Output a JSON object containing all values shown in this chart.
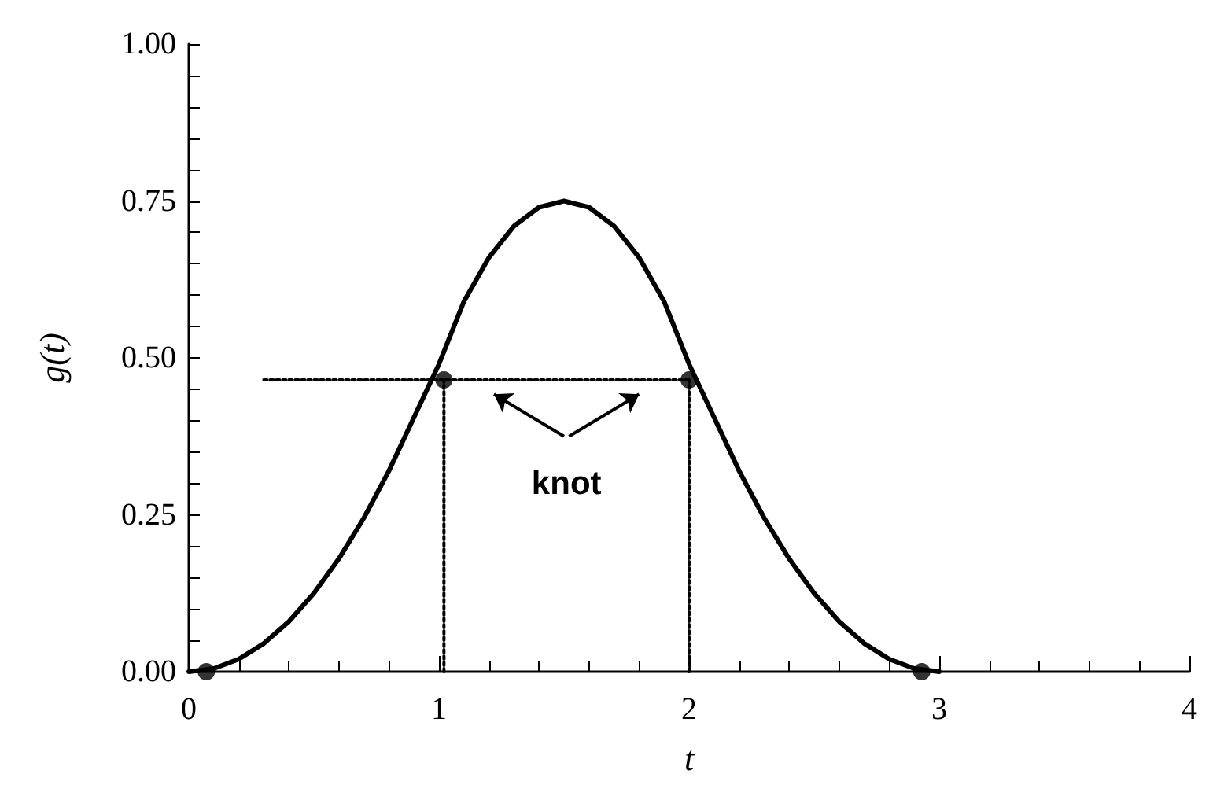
{
  "chart_data": {
    "type": "line",
    "xlabel": "t",
    "ylabel": "g(t)",
    "xlim": [
      0,
      4
    ],
    "xticks": [
      0,
      1,
      2,
      3,
      4
    ],
    "ylim": [
      0,
      1
    ],
    "yticks": [
      {
        "value": 0,
        "label": "0.00"
      },
      {
        "value": 0.25,
        "label": "0.25"
      },
      {
        "value": 0.5,
        "label": "0.50"
      },
      {
        "value": 0.75,
        "label": "0.75"
      },
      {
        "value": 1,
        "label": "1.00"
      }
    ],
    "grid": false,
    "marker": "none",
    "line_style": "solid",
    "series": [
      {
        "color": "#000000",
        "x": [
          0,
          0.1,
          0.2,
          0.3,
          0.4,
          0.5,
          0.6,
          0.7,
          0.8,
          0.9,
          1.0,
          1.1,
          1.2,
          1.3,
          1.4,
          1.5,
          1.6,
          1.7,
          1.8,
          1.9,
          2.0,
          2.1,
          2.2,
          2.3,
          2.4,
          2.5,
          2.6,
          2.7,
          2.8,
          2.9,
          3.0
        ],
        "values": [
          0,
          0.005,
          0.02,
          0.045,
          0.08,
          0.125,
          0.18,
          0.245,
          0.32,
          0.405,
          0.49,
          0.59,
          0.66,
          0.71,
          0.74,
          0.75,
          0.74,
          0.71,
          0.66,
          0.59,
          0.49,
          0.405,
          0.32,
          0.245,
          0.18,
          0.125,
          0.08,
          0.045,
          0.02,
          0.005,
          0
        ]
      },
      {
        "type": "line",
        "color": "#000000",
        "line_style": "dotted",
        "x": [
          0.3,
          2.0
        ],
        "values": [
          0.465,
          0.465
        ]
      },
      {
        "type": "line",
        "color": "#000000",
        "line_style": "dotted",
        "x": [
          1.02,
          1.02
        ],
        "values": [
          0,
          0.465
        ]
      },
      {
        "type": "line",
        "color": "#000000",
        "line_style": "dotted",
        "x": [
          2.0,
          2.0
        ],
        "values": [
          0,
          0.465
        ]
      },
      {
        "type": "scatter",
        "color": "#000000",
        "marker": "circle",
        "x": [
          1.02,
          2.0
        ],
        "values": [
          0.465,
          0.465
        ]
      },
      {
        "type": "scatter",
        "color": "#000000",
        "marker": "circle",
        "x": [
          0.07,
          2.93
        ],
        "values": [
          0,
          0
        ]
      }
    ],
    "annotations": [
      "knot"
    ]
  }
}
